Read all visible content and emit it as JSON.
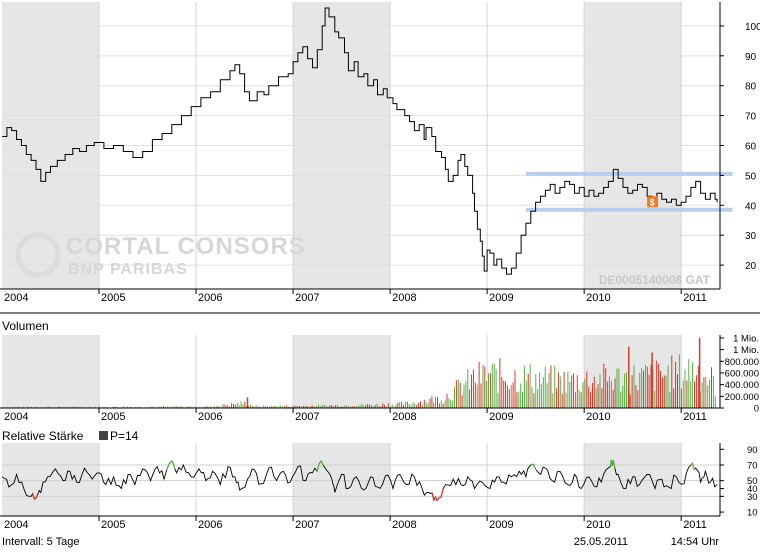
{
  "chart_data": [
    {
      "type": "line",
      "panel": "price",
      "x_unit": "year",
      "x_range": [
        2003.85,
        2011.25
      ],
      "ylim": [
        12,
        108
      ],
      "y_ticks": [
        20,
        30,
        40,
        50,
        60,
        70,
        80,
        90,
        100
      ],
      "x_tick_labels": [
        "2004",
        "2005",
        "2006",
        "2007",
        "2008",
        "2009",
        "2010",
        "2011"
      ],
      "grid": true,
      "series": [
        {
          "color": "#000000",
          "points": [
            [
              2003.85,
              63
            ],
            [
              2003.9,
              66
            ],
            [
              2003.95,
              65
            ],
            [
              2004.0,
              62
            ],
            [
              2004.05,
              60
            ],
            [
              2004.1,
              57
            ],
            [
              2004.15,
              55
            ],
            [
              2004.2,
              52
            ],
            [
              2004.25,
              48
            ],
            [
              2004.3,
              51
            ],
            [
              2004.35,
              53
            ],
            [
              2004.42,
              55
            ],
            [
              2004.5,
              57
            ],
            [
              2004.58,
              59
            ],
            [
              2004.65,
              58
            ],
            [
              2004.72,
              60
            ],
            [
              2004.8,
              61
            ],
            [
              2004.9,
              59
            ],
            [
              2005.0,
              60
            ],
            [
              2005.1,
              58
            ],
            [
              2005.2,
              56
            ],
            [
              2005.3,
              58
            ],
            [
              2005.4,
              62
            ],
            [
              2005.5,
              64
            ],
            [
              2005.6,
              67
            ],
            [
              2005.7,
              70
            ],
            [
              2005.8,
              73
            ],
            [
              2005.9,
              76
            ],
            [
              2006.0,
              78
            ],
            [
              2006.1,
              82
            ],
            [
              2006.2,
              85
            ],
            [
              2006.25,
              87
            ],
            [
              2006.3,
              84
            ],
            [
              2006.35,
              78
            ],
            [
              2006.4,
              75
            ],
            [
              2006.48,
              78
            ],
            [
              2006.55,
              77
            ],
            [
              2006.6,
              80
            ],
            [
              2006.7,
              83
            ],
            [
              2006.8,
              84
            ],
            [
              2006.85,
              88
            ],
            [
              2006.9,
              91
            ],
            [
              2006.95,
              93
            ],
            [
              2007.0,
              89
            ],
            [
              2007.05,
              86
            ],
            [
              2007.1,
              92
            ],
            [
              2007.15,
              100
            ],
            [
              2007.18,
              106
            ],
            [
              2007.22,
              103
            ],
            [
              2007.28,
              98
            ],
            [
              2007.32,
              96
            ],
            [
              2007.38,
              91
            ],
            [
              2007.42,
              85
            ],
            [
              2007.48,
              88
            ],
            [
              2007.52,
              83
            ],
            [
              2007.58,
              84
            ],
            [
              2007.62,
              80
            ],
            [
              2007.68,
              82
            ],
            [
              2007.72,
              77
            ],
            [
              2007.78,
              79
            ],
            [
              2007.82,
              76
            ],
            [
              2007.88,
              74
            ],
            [
              2007.92,
              72
            ],
            [
              2008.0,
              70
            ],
            [
              2008.05,
              68
            ],
            [
              2008.1,
              65
            ],
            [
              2008.15,
              67
            ],
            [
              2008.2,
              62
            ],
            [
              2008.22,
              66
            ],
            [
              2008.28,
              63
            ],
            [
              2008.32,
              58
            ],
            [
              2008.38,
              56
            ],
            [
              2008.42,
              52
            ],
            [
              2008.45,
              48
            ],
            [
              2008.5,
              50
            ],
            [
              2008.55,
              55
            ],
            [
              2008.58,
              57
            ],
            [
              2008.62,
              53
            ],
            [
              2008.65,
              50
            ],
            [
              2008.7,
              44
            ],
            [
              2008.72,
              38
            ],
            [
              2008.75,
              32
            ],
            [
              2008.78,
              28
            ],
            [
              2008.8,
              23
            ],
            [
              2008.82,
              18
            ],
            [
              2008.85,
              25
            ],
            [
              2008.88,
              24
            ],
            [
              2008.92,
              20
            ],
            [
              2008.95,
              22
            ],
            [
              2009.0,
              19
            ],
            [
              2009.05,
              17
            ],
            [
              2009.1,
              19
            ],
            [
              2009.15,
              24
            ],
            [
              2009.2,
              30
            ],
            [
              2009.25,
              34
            ],
            [
              2009.3,
              38
            ],
            [
              2009.35,
              41
            ],
            [
              2009.4,
              43
            ],
            [
              2009.45,
              45
            ],
            [
              2009.5,
              47
            ],
            [
              2009.55,
              44
            ],
            [
              2009.6,
              46
            ],
            [
              2009.65,
              48
            ],
            [
              2009.7,
              47
            ],
            [
              2009.75,
              44
            ],
            [
              2009.8,
              46
            ],
            [
              2009.85,
              43
            ],
            [
              2009.9,
              45
            ],
            [
              2009.95,
              43
            ],
            [
              2010.0,
              44
            ],
            [
              2010.05,
              46
            ],
            [
              2010.1,
              48
            ],
            [
              2010.15,
              52
            ],
            [
              2010.2,
              49
            ],
            [
              2010.25,
              46
            ],
            [
              2010.3,
              44
            ],
            [
              2010.35,
              45
            ],
            [
              2010.4,
              47
            ],
            [
              2010.45,
              46
            ],
            [
              2010.5,
              43
            ],
            [
              2010.55,
              42
            ],
            [
              2010.6,
              44
            ],
            [
              2010.65,
              42
            ],
            [
              2010.7,
              41
            ],
            [
              2010.75,
              42
            ],
            [
              2010.8,
              40
            ],
            [
              2010.85,
              41
            ],
            [
              2010.9,
              43
            ],
            [
              2010.95,
              46
            ],
            [
              2011.0,
              48
            ],
            [
              2011.05,
              44
            ],
            [
              2011.1,
              42
            ],
            [
              2011.15,
              44
            ],
            [
              2011.2,
              42
            ],
            [
              2011.22,
              41
            ]
          ]
        }
      ],
      "trend_lines": [
        {
          "x": [
            2009.25,
            2011.38
          ],
          "y": [
            50.5,
            50.5
          ],
          "color": "#b9cdee"
        },
        {
          "x": [
            2009.25,
            2011.38
          ],
          "y": [
            38.5,
            38.5
          ],
          "color": "#b9cdee"
        }
      ],
      "marker": {
        "x": 2010.55,
        "y": 41,
        "label": "$",
        "color": "#f07a20"
      },
      "watermark": [
        "CORTAL CONSORS",
        "BNP PARIBAS"
      ],
      "annotation": "DE0005140008 GAT"
    },
    {
      "type": "bar",
      "panel": "volume",
      "title": "Volumen",
      "x_unit": "year",
      "x_range": [
        2003.85,
        2011.25
      ],
      "ylim": [
        0,
        1250000
      ],
      "y_tick_values": [
        0,
        200000,
        400000,
        600000,
        800000,
        1000000,
        1200000
      ],
      "y_tick_labels": [
        "0",
        "200.000",
        "400.000",
        "600.000",
        "800.000",
        "1 Mio.",
        "1 Mio."
      ],
      "x_tick_labels": [
        "2004",
        "2005",
        "2006",
        "2007",
        "2008",
        "2009",
        "2010",
        "2011"
      ],
      "colors": {
        "up": "#55b043",
        "down": "#d63a2a"
      },
      "envelope": [
        [
          2003.85,
          20000
        ],
        [
          2005.0,
          25000
        ],
        [
          2006.0,
          30000
        ],
        [
          2006.35,
          120000
        ],
        [
          2006.45,
          40000
        ],
        [
          2007.0,
          50000
        ],
        [
          2007.6,
          70000
        ],
        [
          2008.0,
          100000
        ],
        [
          2008.4,
          250000
        ],
        [
          2008.7,
          700000
        ],
        [
          2008.85,
          800000
        ],
        [
          2009.2,
          750000
        ],
        [
          2009.6,
          650000
        ],
        [
          2010.0,
          700000
        ],
        [
          2010.5,
          750000
        ],
        [
          2010.8,
          850000
        ],
        [
          2011.0,
          950000
        ],
        [
          2011.15,
          700000
        ],
        [
          2011.22,
          550000
        ]
      ],
      "spikes": [
        {
          "x": 2011.04,
          "value": 1200000
        },
        {
          "x": 2010.55,
          "value": 950000
        },
        {
          "x": 2010.31,
          "value": 1050000
        },
        {
          "x": 2006.38,
          "value": 180000
        }
      ]
    },
    {
      "type": "line",
      "panel": "rsi",
      "title": "Relative Stärke",
      "legend": "P=14",
      "x_unit": "year",
      "x_range": [
        2003.85,
        2011.25
      ],
      "ylim": [
        5,
        98
      ],
      "y_ticks": [
        10,
        30,
        40,
        50,
        70,
        90
      ],
      "x_tick_labels": [
        "2004",
        "2005",
        "2006",
        "2007",
        "2008",
        "2009",
        "2010",
        "2011"
      ],
      "overbought": 70,
      "oversold": 30,
      "colors": {
        "line": "#000000",
        "overbought": "#55b043",
        "oversold": "#d63a2a"
      },
      "points": [
        [
          2003.85,
          55
        ],
        [
          2003.92,
          42
        ],
        [
          2004.0,
          58
        ],
        [
          2004.08,
          38
        ],
        [
          2004.15,
          30
        ],
        [
          2004.2,
          28
        ],
        [
          2004.25,
          35
        ],
        [
          2004.32,
          55
        ],
        [
          2004.4,
          65
        ],
        [
          2004.48,
          50
        ],
        [
          2004.55,
          62
        ],
        [
          2004.62,
          48
        ],
        [
          2004.7,
          66
        ],
        [
          2004.78,
          52
        ],
        [
          2004.85,
          60
        ],
        [
          2004.92,
          45
        ],
        [
          2005.0,
          55
        ],
        [
          2005.08,
          40
        ],
        [
          2005.15,
          58
        ],
        [
          2005.22,
          45
        ],
        [
          2005.3,
          65
        ],
        [
          2005.38,
          50
        ],
        [
          2005.45,
          68
        ],
        [
          2005.52,
          52
        ],
        [
          2005.6,
          75
        ],
        [
          2005.65,
          60
        ],
        [
          2005.72,
          70
        ],
        [
          2005.8,
          55
        ],
        [
          2005.88,
          65
        ],
        [
          2005.95,
          50
        ],
        [
          2006.02,
          62
        ],
        [
          2006.1,
          45
        ],
        [
          2006.18,
          68
        ],
        [
          2006.25,
          55
        ],
        [
          2006.3,
          38
        ],
        [
          2006.38,
          52
        ],
        [
          2006.45,
          64
        ],
        [
          2006.52,
          46
        ],
        [
          2006.6,
          66
        ],
        [
          2006.68,
          50
        ],
        [
          2006.75,
          62
        ],
        [
          2006.82,
          48
        ],
        [
          2006.9,
          68
        ],
        [
          2006.98,
          50
        ],
        [
          2007.05,
          60
        ],
        [
          2007.12,
          72
        ],
        [
          2007.18,
          66
        ],
        [
          2007.25,
          52
        ],
        [
          2007.28,
          35
        ],
        [
          2007.35,
          58
        ],
        [
          2007.42,
          40
        ],
        [
          2007.5,
          55
        ],
        [
          2007.58,
          38
        ],
        [
          2007.65,
          55
        ],
        [
          2007.72,
          42
        ],
        [
          2007.8,
          56
        ],
        [
          2007.88,
          40
        ],
        [
          2007.95,
          58
        ],
        [
          2008.02,
          45
        ],
        [
          2008.1,
          55
        ],
        [
          2008.18,
          40
        ],
        [
          2008.25,
          35
        ],
        [
          2008.3,
          25
        ],
        [
          2008.35,
          28
        ],
        [
          2008.42,
          45
        ],
        [
          2008.5,
          52
        ],
        [
          2008.58,
          45
        ],
        [
          2008.65,
          55
        ],
        [
          2008.72,
          40
        ],
        [
          2008.8,
          48
        ],
        [
          2008.88,
          40
        ],
        [
          2008.95,
          55
        ],
        [
          2009.02,
          48
        ],
        [
          2009.1,
          55
        ],
        [
          2009.18,
          62
        ],
        [
          2009.25,
          55
        ],
        [
          2009.3,
          70
        ],
        [
          2009.38,
          60
        ],
        [
          2009.45,
          66
        ],
        [
          2009.52,
          50
        ],
        [
          2009.6,
          62
        ],
        [
          2009.68,
          45
        ],
        [
          2009.75,
          58
        ],
        [
          2009.82,
          40
        ],
        [
          2009.9,
          55
        ],
        [
          2009.98,
          42
        ],
        [
          2010.05,
          58
        ],
        [
          2010.12,
          68
        ],
        [
          2010.15,
          76
        ],
        [
          2010.2,
          58
        ],
        [
          2010.28,
          40
        ],
        [
          2010.35,
          55
        ],
        [
          2010.42,
          45
        ],
        [
          2010.5,
          58
        ],
        [
          2010.58,
          40
        ],
        [
          2010.65,
          52
        ],
        [
          2010.72,
          42
        ],
        [
          2010.8,
          55
        ],
        [
          2010.88,
          46
        ],
        [
          2010.95,
          70
        ],
        [
          2011.0,
          66
        ],
        [
          2011.05,
          48
        ],
        [
          2011.1,
          62
        ],
        [
          2011.15,
          48
        ],
        [
          2011.22,
          45
        ]
      ]
    }
  ],
  "footer": {
    "interval": "Intervall: 5 Tage",
    "date": "25.05.2011",
    "time": "14:54 Uhr"
  }
}
